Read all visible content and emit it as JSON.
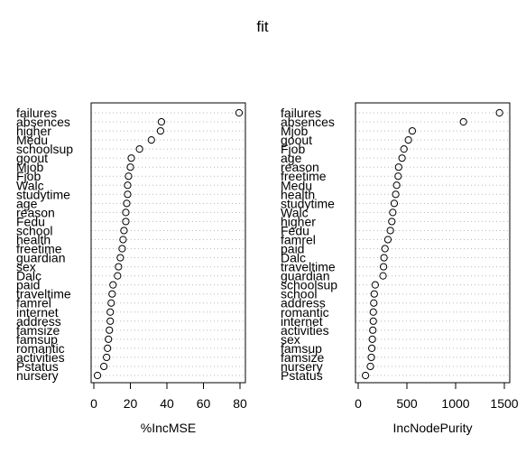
{
  "title": "fit",
  "chart_data": [
    {
      "type": "scatter",
      "xlabel": "%IncMSE",
      "xlim": [
        0,
        80
      ],
      "xticks": [
        0,
        20,
        40,
        60,
        80
      ],
      "grid": "dotted horizontal per variable",
      "variables": [
        "failures",
        "absences",
        "higher",
        "Medu",
        "schoolsup",
        "goout",
        "Mjob",
        "Fjob",
        "Walc",
        "studytime",
        "age",
        "reason",
        "Fedu",
        "school",
        "health",
        "freetime",
        "guardian",
        "sex",
        "Dalc",
        "paid",
        "traveltime",
        "famrel",
        "internet",
        "address",
        "famsize",
        "famsup",
        "romantic",
        "activities",
        "Pstatus",
        "nursery"
      ],
      "values": [
        79.5,
        37,
        36.5,
        31.5,
        25,
        20.5,
        20,
        19,
        18.5,
        18.5,
        18,
        17.5,
        17.5,
        16.5,
        16,
        15.5,
        14.5,
        13.5,
        13,
        10.5,
        10,
        9.5,
        9,
        9,
        8.5,
        8,
        7.5,
        7,
        5.5,
        2
      ]
    },
    {
      "type": "scatter",
      "xlabel": "IncNodePurity",
      "xlim": [
        0,
        1500
      ],
      "xticks": [
        0,
        500,
        1000,
        1500
      ],
      "grid": "dotted horizontal per variable",
      "variables": [
        "failures",
        "absences",
        "Mjob",
        "goout",
        "Fjob",
        "age",
        "reason",
        "freetime",
        "Medu",
        "health",
        "studytime",
        "Walc",
        "higher",
        "Fedu",
        "famrel",
        "paid",
        "Dalc",
        "traveltime",
        "guardian",
        "schoolsup",
        "school",
        "address",
        "romantic",
        "internet",
        "activities",
        "sex",
        "famsup",
        "famsize",
        "nursery",
        "Pstatus"
      ],
      "values": [
        1450,
        1080,
        555,
        515,
        470,
        450,
        415,
        410,
        395,
        385,
        370,
        355,
        345,
        330,
        305,
        275,
        265,
        260,
        255,
        175,
        165,
        160,
        155,
        155,
        150,
        145,
        140,
        135,
        125,
        75
      ]
    }
  ]
}
